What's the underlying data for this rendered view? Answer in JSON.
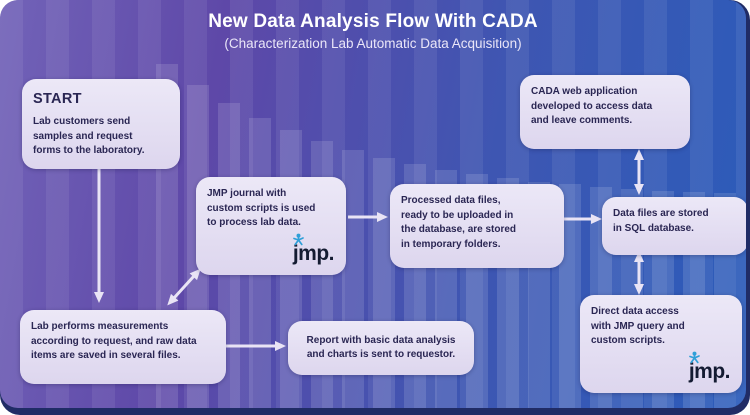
{
  "header": {
    "title": "New Data Analysis Flow With CADA",
    "subtitle": "(Characterization Lab Automatic Data Acquisition)"
  },
  "nodes": {
    "start": {
      "heading": "START",
      "body": "Lab customers send\nsamples and request\nforms to the laboratory."
    },
    "jmp_journal": {
      "body": "JMP journal with\ncustom scripts is used\nto process lab data.",
      "logo_text": "jmp."
    },
    "processed": {
      "body": "Processed data files,\nready to be uploaded in\nthe database, are stored\nin temporary folders."
    },
    "cada_web": {
      "body": "CADA web application\ndeveloped to access data\nand leave comments."
    },
    "sql": {
      "body": "Data files are stored\nin SQL database."
    },
    "direct": {
      "body": "Direct data access\nwith JMP query and\ncustom scripts.",
      "logo_text": "jmp."
    },
    "lab": {
      "body": "Lab performs measurements\naccording to request, and raw data\nitems are saved in several files."
    },
    "report": {
      "body": "Report with basic data analysis\nand charts is sent to requestor."
    }
  },
  "colors": {
    "background_left": "#6a55ae",
    "background_right": "#2b5cba",
    "frame_border": "#202c66",
    "box_background": "#e8e3f4",
    "box_text": "#2a2653",
    "arrow": "#e9e4f5",
    "title_text": "#ffffff",
    "jmp_logo_text": "#141b32",
    "jmp_logo_accent": "#2f9fd8"
  }
}
